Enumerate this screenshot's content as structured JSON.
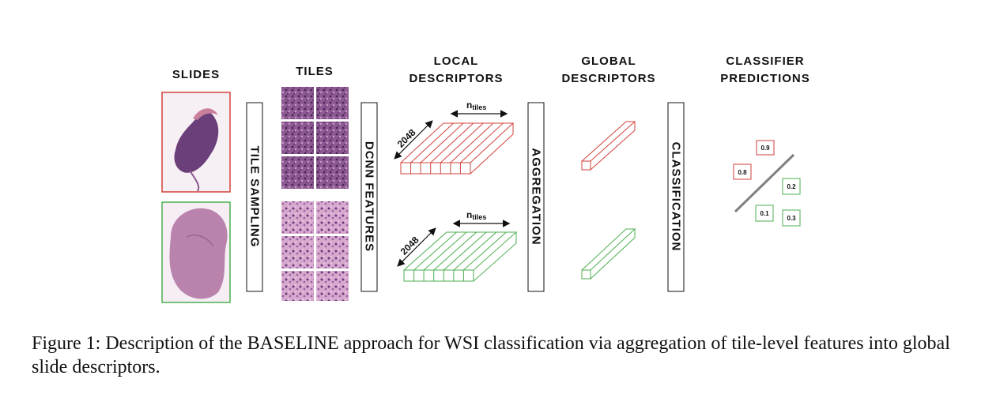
{
  "headers": {
    "slides": "SLIDES",
    "tiles": "TILES",
    "local_line1": "LOCAL",
    "local_line2": "DESCRIPTORS",
    "global_line1": "GLOBAL",
    "global_line2": "DESCRIPTORS",
    "classifier_line1": "CLASSIFIER",
    "classifier_line2": "PREDICTIONS"
  },
  "stages": {
    "tile_sampling": "TILE SAMPLING",
    "dcnn_features": "DCNN FEATURES",
    "aggregation": "AGGREGATION",
    "classification": "CLASSIFICATION"
  },
  "dims": {
    "n_main": "n",
    "n_sub": "tiles",
    "depth": "2048"
  },
  "predictions": {
    "red": [
      "0.9",
      "0.8"
    ],
    "green": [
      "0.2",
      "0.1",
      "0.3"
    ]
  },
  "colors": {
    "red": "#d2423c",
    "green": "#4caf50",
    "divider": "#808080",
    "tissue_red": "#6b3f7a",
    "tissue_green": "#b983ad"
  },
  "caption": "Figure 1: Description of the BASELINE approach for WSI classification via aggregation of tile-level features into global slide descriptors."
}
